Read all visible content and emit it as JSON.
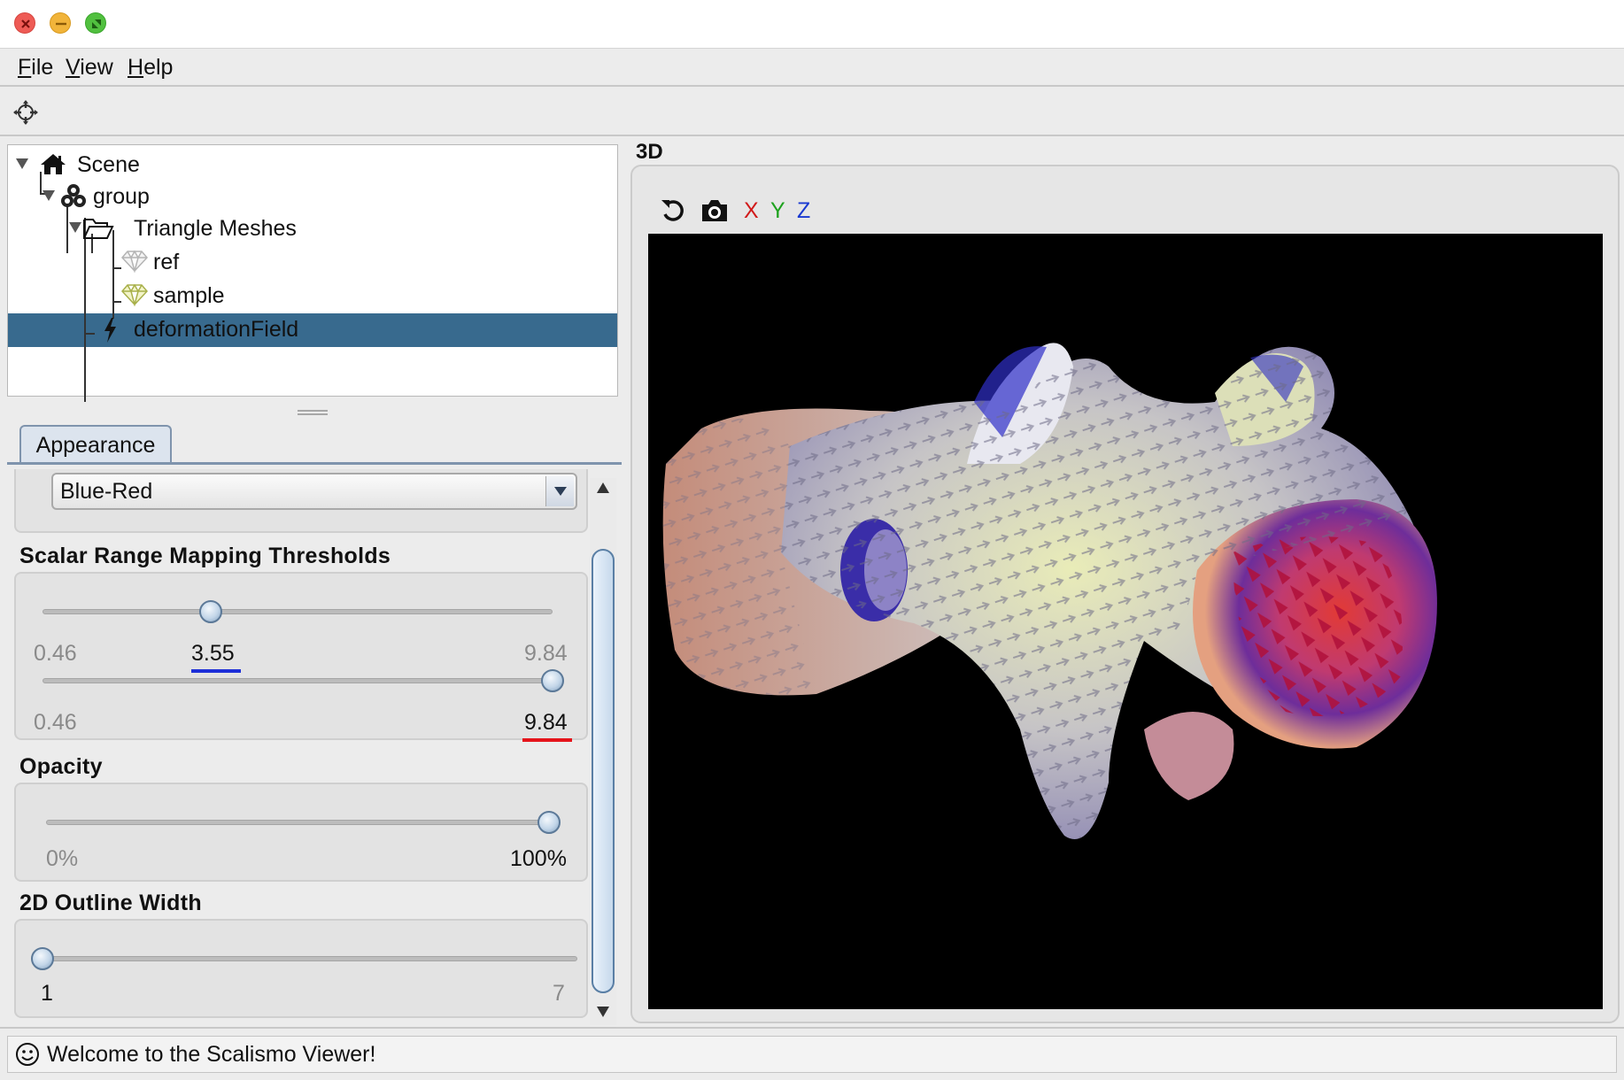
{
  "menu": {
    "items": [
      {
        "key": "F",
        "rest": "ile"
      },
      {
        "key": "V",
        "rest": "iew"
      },
      {
        "key": "H",
        "rest": "elp"
      }
    ]
  },
  "toolbar": {
    "icon": "center-crosshair-icon"
  },
  "tree": {
    "scene": "Scene",
    "group": "group",
    "meshes": "Triangle Meshes",
    "ref": "ref",
    "sample": "sample",
    "field": "deformationField",
    "selected": "deformationField"
  },
  "appearance": {
    "tab": "Appearance",
    "colormap": "Blue-Red",
    "scalar": {
      "title": "Scalar Range Mapping Thresholds",
      "lower": {
        "min": "0.46",
        "value": "3.55",
        "max": "9.84",
        "value_num": 3.55,
        "min_num": 0.46,
        "max_num": 9.84
      },
      "upper": {
        "min": "0.46",
        "value": "9.84",
        "value_num": 9.84,
        "min_num": 0.46,
        "max_num": 9.84
      },
      "lower_accent": "#1d2fd8",
      "upper_accent": "#e5141b"
    },
    "opacity": {
      "title": "Opacity",
      "min": "0%",
      "max": "100%",
      "value_pct": 100
    },
    "outline": {
      "title": "2D Outline Width",
      "min": "1",
      "max": "7",
      "value": 1
    }
  },
  "view3d": {
    "title": "3D",
    "reset_icon": "reset-view-icon",
    "camera_icon": "camera-icon",
    "x": "X",
    "y": "Y",
    "z": "Z",
    "x_color": "#d11a1a",
    "y_color": "#1ea21e",
    "z_color": "#1a3ad1"
  },
  "status": {
    "text": "Welcome to the Scalismo Viewer!",
    "icon": "smiley-icon"
  },
  "colors": {
    "selection": "#386a8e",
    "tab_border": "#7f94ad",
    "canvas_bg": "#000000"
  }
}
